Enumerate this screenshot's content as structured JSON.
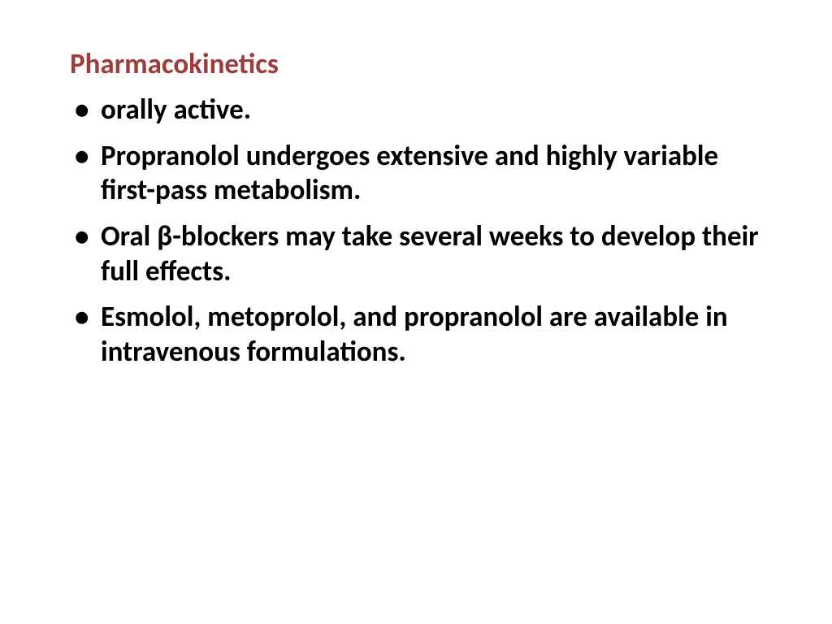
{
  "slide": {
    "title": "Pharmacokinetics",
    "title_color": "#9e3b3b",
    "background_color": "#ffffff",
    "bullets": [
      "orally active.",
      "Propranolol undergoes extensive and highly variable first-pass metabolism.",
      "Oral β-blockers may take several weeks to develop their full effects.",
      "Esmolol, metoprolol, and propranolol are available in intravenous formulations."
    ],
    "bullet_color": "#000000",
    "font_size_pt": 26,
    "font_weight": 700
  }
}
